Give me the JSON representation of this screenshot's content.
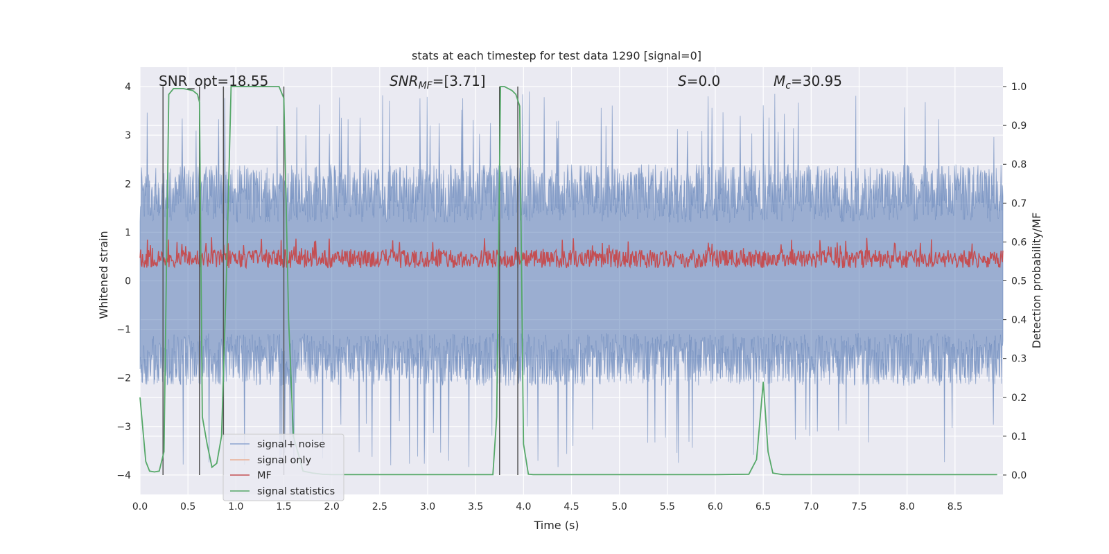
{
  "chart_data": {
    "type": "line",
    "title": "stats at each timestep for test data 1290 [signal=0]",
    "xlabel": "Time (s)",
    "ylabel_left": "Whitened strain",
    "ylabel_right": "Detection probability/MF",
    "xlim": [
      0.0,
      9.0
    ],
    "ylim_left": [
      -4.4,
      4.4
    ],
    "ylim_right": [
      -0.05,
      1.05
    ],
    "xticks": [
      "0.0",
      "0.5",
      "1.0",
      "1.5",
      "2.0",
      "2.5",
      "3.0",
      "3.5",
      "4.0",
      "4.5",
      "5.0",
      "5.5",
      "6.0",
      "6.5",
      "7.0",
      "7.5",
      "8.0",
      "8.5"
    ],
    "yticks_left": [
      "4",
      "3",
      "2",
      "1",
      "0",
      "−1",
      "−2",
      "−3",
      "−4"
    ],
    "yticks_right": [
      "1.0",
      "0.9",
      "0.8",
      "0.7",
      "0.6",
      "0.5",
      "0.4",
      "0.3",
      "0.2",
      "0.1",
      "0.0"
    ],
    "grid": true,
    "legend_placement": "lower-left",
    "annotations": {
      "snr_opt": "SNR_opt=18.55",
      "snr_mf_main": "SNR",
      "snr_mf_sub": "MF",
      "snr_mf_value": "=[3.71]",
      "s_main": "S",
      "s_value": "=0.0",
      "mc_main": "M",
      "mc_sub": "c",
      "mc_value": "=30.95"
    },
    "detection_boundaries": [
      0.24,
      0.62,
      0.87,
      1.5,
      3.75,
      3.94
    ],
    "series": [
      {
        "name": "signal+ noise",
        "axis": "left",
        "color": "#4c72b0",
        "description_values": {
          "envelope_upper_typical": 2.0,
          "envelope_lower_typical": -1.8,
          "peak_max": 3.9,
          "peak_min": -3.85
        }
      },
      {
        "name": "signal only",
        "axis": "left",
        "color": "#dd8452",
        "values": []
      },
      {
        "name": "MF",
        "axis": "left",
        "color": "#c44e52",
        "description_values": {
          "range_low": 0.05,
          "range_high": 0.9
        }
      },
      {
        "name": "signal statistics",
        "axis": "right",
        "color": "#55a868",
        "x": [
          0.0,
          0.06,
          0.1,
          0.15,
          0.2,
          0.25,
          0.3,
          0.35,
          0.45,
          0.55,
          0.6,
          0.62,
          0.65,
          0.7,
          0.75,
          0.8,
          0.85,
          0.9,
          0.95,
          1.0,
          1.1,
          1.2,
          1.3,
          1.45,
          1.5,
          1.55,
          1.6,
          1.7,
          1.8,
          1.9,
          2.0,
          2.5,
          3.0,
          3.5,
          3.68,
          3.72,
          3.76,
          3.8,
          3.88,
          3.92,
          3.96,
          4.0,
          4.05,
          4.1,
          4.5,
          5.0,
          5.5,
          6.0,
          6.35,
          6.43,
          6.5,
          6.55,
          6.6,
          6.7,
          7.0,
          8.0,
          8.94
        ],
        "y": [
          0.2,
          0.035,
          0.01,
          0.008,
          0.01,
          0.06,
          0.98,
          0.995,
          0.995,
          0.99,
          0.98,
          0.96,
          0.15,
          0.08,
          0.02,
          0.03,
          0.1,
          0.5,
          1.0,
          1.0,
          1.0,
          1.0,
          1.0,
          1.0,
          0.97,
          0.4,
          0.1,
          0.01,
          0.005,
          0.002,
          0.001,
          0.001,
          0.001,
          0.001,
          0.001,
          0.15,
          1.0,
          1.0,
          0.99,
          0.98,
          0.95,
          0.08,
          0.002,
          0.001,
          0.001,
          0.001,
          0.001,
          0.001,
          0.002,
          0.04,
          0.24,
          0.06,
          0.005,
          0.001,
          0.001,
          0.001,
          0.001
        ]
      }
    ]
  }
}
